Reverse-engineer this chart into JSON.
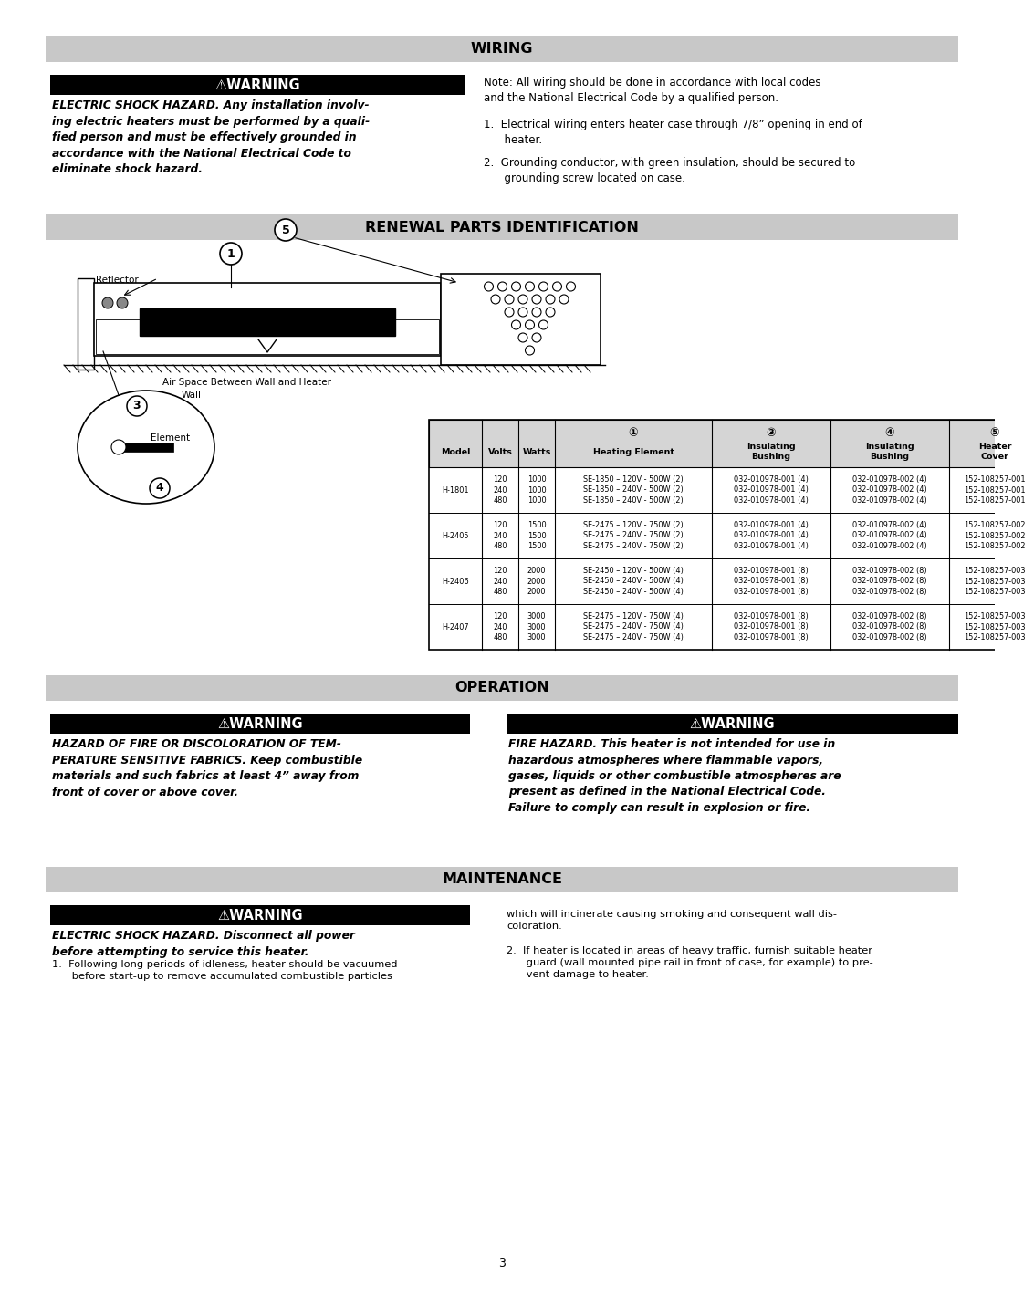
{
  "page_bg": "#ffffff",
  "section_header_bg": "#c8c8c8",
  "wiring_title": "WIRING",
  "renewal_title": "RENEWAL PARTS IDENTIFICATION",
  "operation_title": "OPERATION",
  "maintenance_title": "MAINTENANCE",
  "wiring_warn_title": "⚠WARNING",
  "wiring_warn_body_lines": [
    "ELECTRIC SHOCK HAZARD. Any installation involv-",
    "ing electric heaters must be performed by a quali-",
    "fied person and must be effectively grounded in",
    "accordance with the National Electrical Code to",
    "eliminate shock hazard."
  ],
  "wiring_note_bold": "Note:",
  "wiring_note_rest": " All wiring should be done in accordance with local codes\nand the National Electrical Code by a qualified person.",
  "wiring_item1": "Electrical wiring enters heater case through 7/8” opening in end of\n      heater.",
  "wiring_item2": "Grounding conductor, with green insulation, should be secured to\n      grounding screw located on case.",
  "op_warn1_title": "⚠WARNING",
  "op_warn1_body_lines": [
    "HAZARD OF FIRE OR DISCOLORATION OF TEM-",
    "PERATURE SENSITIVE FABRICS. Keep combustible",
    "materials and such fabrics at least 4” away from",
    "front of cover or above cover."
  ],
  "op_warn2_title": "⚠WARNING",
  "op_warn2_body_lines": [
    "FIRE HAZARD. This heater is not intended for use in",
    "hazardous atmospheres where flammable vapors,",
    "gases, liquids or other combustible atmospheres are",
    "present as defined in the National Electrical Code.",
    "Failure to comply can result in explosion or fire."
  ],
  "maint_warn_title": "⚠WARNING",
  "maint_warn_body_lines": [
    "ELECTRIC SHOCK HAZARD. Disconnect all power",
    "before attempting to service this heater."
  ],
  "maint_item1_lines": [
    "Following long periods of idleness, heater should be vacuumed",
    "before start-up to remove accumulated combustible particles"
  ],
  "maint_right_top": "which will incinerate causing smoking and consequent wall dis-\ncoloration.",
  "maint_item2_lines": [
    "If heater is located in areas of heavy traffic, furnish suitable heater",
    "guard (wall mounted pipe rail in front of case, for example) to pre-",
    "vent damage to heater."
  ],
  "page_number": "3",
  "table_rows": [
    [
      "H-1801",
      "120\n240\n480",
      "1000\n1000\n1000",
      "SE-1850 – 120V - 500W (2)\nSE-1850 – 240V - 500W (2)\nSE-1850 – 240V - 500W (2)",
      "032-010978-001 (4)\n032-010978-001 (4)\n032-010978-001 (4)",
      "032-010978-002 (4)\n032-010978-002 (4)\n032-010978-002 (4)",
      "152-108257-001\n152-108257-001\n152-108257-001"
    ],
    [
      "H-2405",
      "120\n240\n480",
      "1500\n1500\n1500",
      "SE-2475 – 120V - 750W (2)\nSE-2475 – 240V - 750W (2)\nSE-2475 – 240V - 750W (2)",
      "032-010978-001 (4)\n032-010978-001 (4)\n032-010978-001 (4)",
      "032-010978-002 (4)\n032-010978-002 (4)\n032-010978-002 (4)",
      "152-108257-002\n152-108257-002\n152-108257-002"
    ],
    [
      "H-2406",
      "120\n240\n480",
      "2000\n2000\n2000",
      "SE-2450 – 120V - 500W (4)\nSE-2450 – 240V - 500W (4)\nSE-2450 – 240V - 500W (4)",
      "032-010978-001 (8)\n032-010978-001 (8)\n032-010978-001 (8)",
      "032-010978-002 (8)\n032-010978-002 (8)\n032-010978-002 (8)",
      "152-108257-003\n152-108257-003\n152-108257-003"
    ],
    [
      "H-2407",
      "120\n240\n480",
      "3000\n3000\n3000",
      "SE-2475 – 120V - 750W (4)\nSE-2475 – 240V - 750W (4)\nSE-2475 – 240V - 750W (4)",
      "032-010978-001 (8)\n032-010978-001 (8)\n032-010978-001 (8)",
      "032-010978-002 (8)\n032-010978-002 (8)\n032-010978-002 (8)",
      "152-108257-003\n152-108257-003\n152-108257-003"
    ]
  ]
}
